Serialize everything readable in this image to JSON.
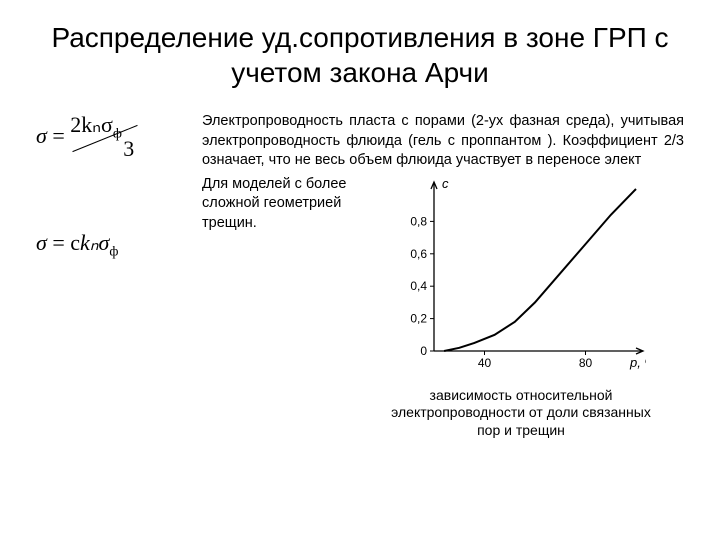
{
  "title": "Распределение уд.сопротивления в зоне ГРП с учетом закона Арчи",
  "formula1": {
    "sigma": "σ",
    "eq": " = ",
    "numerator": "2kₙσ",
    "num_sub": "ф",
    "denominator": "3"
  },
  "formula2": {
    "text_a": "σ",
    "text_eq": " = c",
    "text_b": "kₙσ",
    "text_sub": "ф"
  },
  "paragraph1": "Электропроводность пласта с порами (2-ух фазная среда),\nучитывая электропроводность флюида (гель с проппантом ).\nКоэффициент 2/3 означает, что не весь объем флюида участвует в переносе элект",
  "paragraph2": "Для моделей с более сложной геометрией трещин.",
  "chart": {
    "type": "line",
    "xlabel": "p, %",
    "ylabel": "c",
    "xlim": [
      20,
      100
    ],
    "ylim": [
      0,
      1.0
    ],
    "xticks": [
      40,
      80
    ],
    "yticks": [
      0,
      0.2,
      0.4,
      0.6,
      0.8
    ],
    "ytick_labels": [
      "0",
      "0,2",
      "0,4",
      "0,6",
      "0,8"
    ],
    "curve": [
      {
        "x": 24,
        "y": 0.0
      },
      {
        "x": 30,
        "y": 0.02
      },
      {
        "x": 36,
        "y": 0.05
      },
      {
        "x": 44,
        "y": 0.1
      },
      {
        "x": 52,
        "y": 0.18
      },
      {
        "x": 60,
        "y": 0.3
      },
      {
        "x": 70,
        "y": 0.48
      },
      {
        "x": 80,
        "y": 0.66
      },
      {
        "x": 90,
        "y": 0.84
      },
      {
        "x": 100,
        "y": 1.0
      }
    ],
    "line_color": "#000000",
    "line_width": 2,
    "tick_color": "#000000",
    "axis_color": "#000000",
    "background_color": "#ffffff",
    "label_fontsize": 13,
    "tick_fontsize": 12,
    "font_family": "Arial"
  },
  "caption": "зависимость относительной электропроводности от доли связанных пор и трещин"
}
